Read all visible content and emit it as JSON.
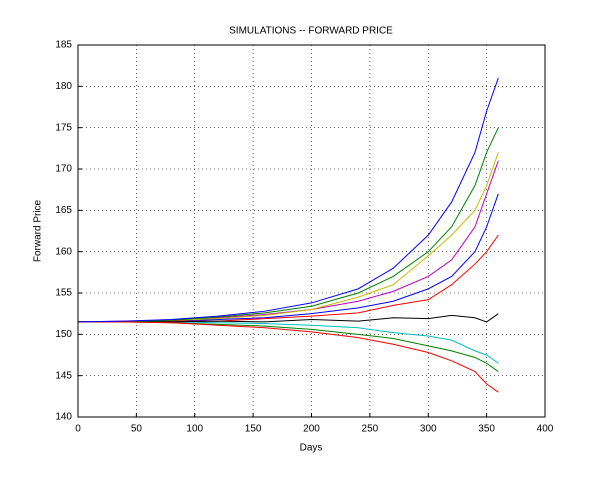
{
  "chart_data": {
    "type": "line",
    "title": "SIMULATIONS -- FORWARD PRICE",
    "x_label": "Days",
    "y_label": "Forward Price",
    "x": [
      0,
      40,
      80,
      120,
      160,
      200,
      240,
      270,
      300,
      320,
      340,
      350,
      360
    ],
    "series": [
      {
        "color": "#0000ff",
        "values": [
          151.5,
          151.5,
          151.6,
          151.8,
          152.0,
          152.5,
          153.2,
          154.0,
          155.5,
          157,
          160,
          163,
          167
        ]
      },
      {
        "color": "#008000",
        "values": [
          151.5,
          151.5,
          151.4,
          151.2,
          151.0,
          150.6,
          150,
          149.5,
          148.6,
          148,
          147.2,
          146.5,
          145.5
        ]
      },
      {
        "color": "#ff0000",
        "values": [
          151.5,
          151.5,
          151.6,
          151.6,
          151.9,
          152.2,
          152.6,
          153.5,
          154.2,
          156,
          158.5,
          160,
          162
        ]
      },
      {
        "color": "#00bfbf",
        "values": [
          151.5,
          151.5,
          151.5,
          151.4,
          151.3,
          151.1,
          150.8,
          150.2,
          149.8,
          149.3,
          148,
          147.5,
          146.5
        ]
      },
      {
        "color": "#bf00bf",
        "values": [
          151.5,
          151.6,
          151.7,
          152.0,
          152.4,
          153.0,
          154.0,
          155.2,
          157,
          159,
          163,
          167,
          171
        ]
      },
      {
        "color": "#bfbf00",
        "values": [
          151.5,
          151.5,
          151.7,
          151.9,
          152.3,
          153.0,
          154.5,
          156,
          159.5,
          162,
          165,
          168,
          172
        ]
      },
      {
        "color": "#000000",
        "values": [
          151.5,
          151.5,
          151.5,
          151.6,
          151.5,
          151.8,
          151.6,
          152.0,
          151.9,
          152.3,
          152.0,
          151.5,
          152.5
        ]
      },
      {
        "color": "#008000",
        "values": [
          151.5,
          151.5,
          151.7,
          152.1,
          152.6,
          153.4,
          155,
          157,
          160,
          163,
          168,
          172,
          175
        ]
      },
      {
        "color": "#ff0000",
        "values": [
          151.5,
          151.5,
          151.4,
          151.1,
          150.8,
          150.3,
          149.6,
          148.8,
          147.8,
          146.8,
          145.5,
          144,
          143
        ]
      },
      {
        "color": "#0000ff",
        "values": [
          151.5,
          151.6,
          151.8,
          152.2,
          152.8,
          153.8,
          155.5,
          158,
          162,
          166,
          172,
          177,
          181
        ]
      }
    ],
    "xlim": [
      0,
      400
    ],
    "xticks": [
      0,
      50,
      100,
      150,
      200,
      250,
      300,
      350,
      400
    ],
    "ylim": [
      140,
      185
    ],
    "yticks": [
      140,
      145,
      150,
      155,
      160,
      165,
      170,
      175,
      180,
      185
    ],
    "grid": true
  }
}
